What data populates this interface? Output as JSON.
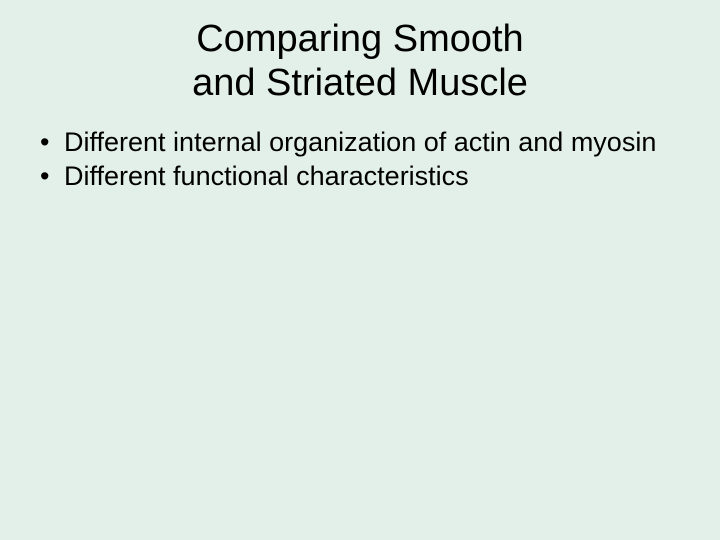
{
  "slide": {
    "background_color": "#e3f0ea",
    "text_color": "#000000",
    "font_family": "Arial, Helvetica, sans-serif",
    "title": {
      "line1": "Comparing Smooth",
      "line2": "and Striated Muscle",
      "fontsize": 38,
      "align": "center",
      "weight": "normal"
    },
    "bullets": {
      "fontsize": 27,
      "items": [
        "Different internal organization of actin and myosin",
        "Different functional characteristics"
      ]
    }
  }
}
